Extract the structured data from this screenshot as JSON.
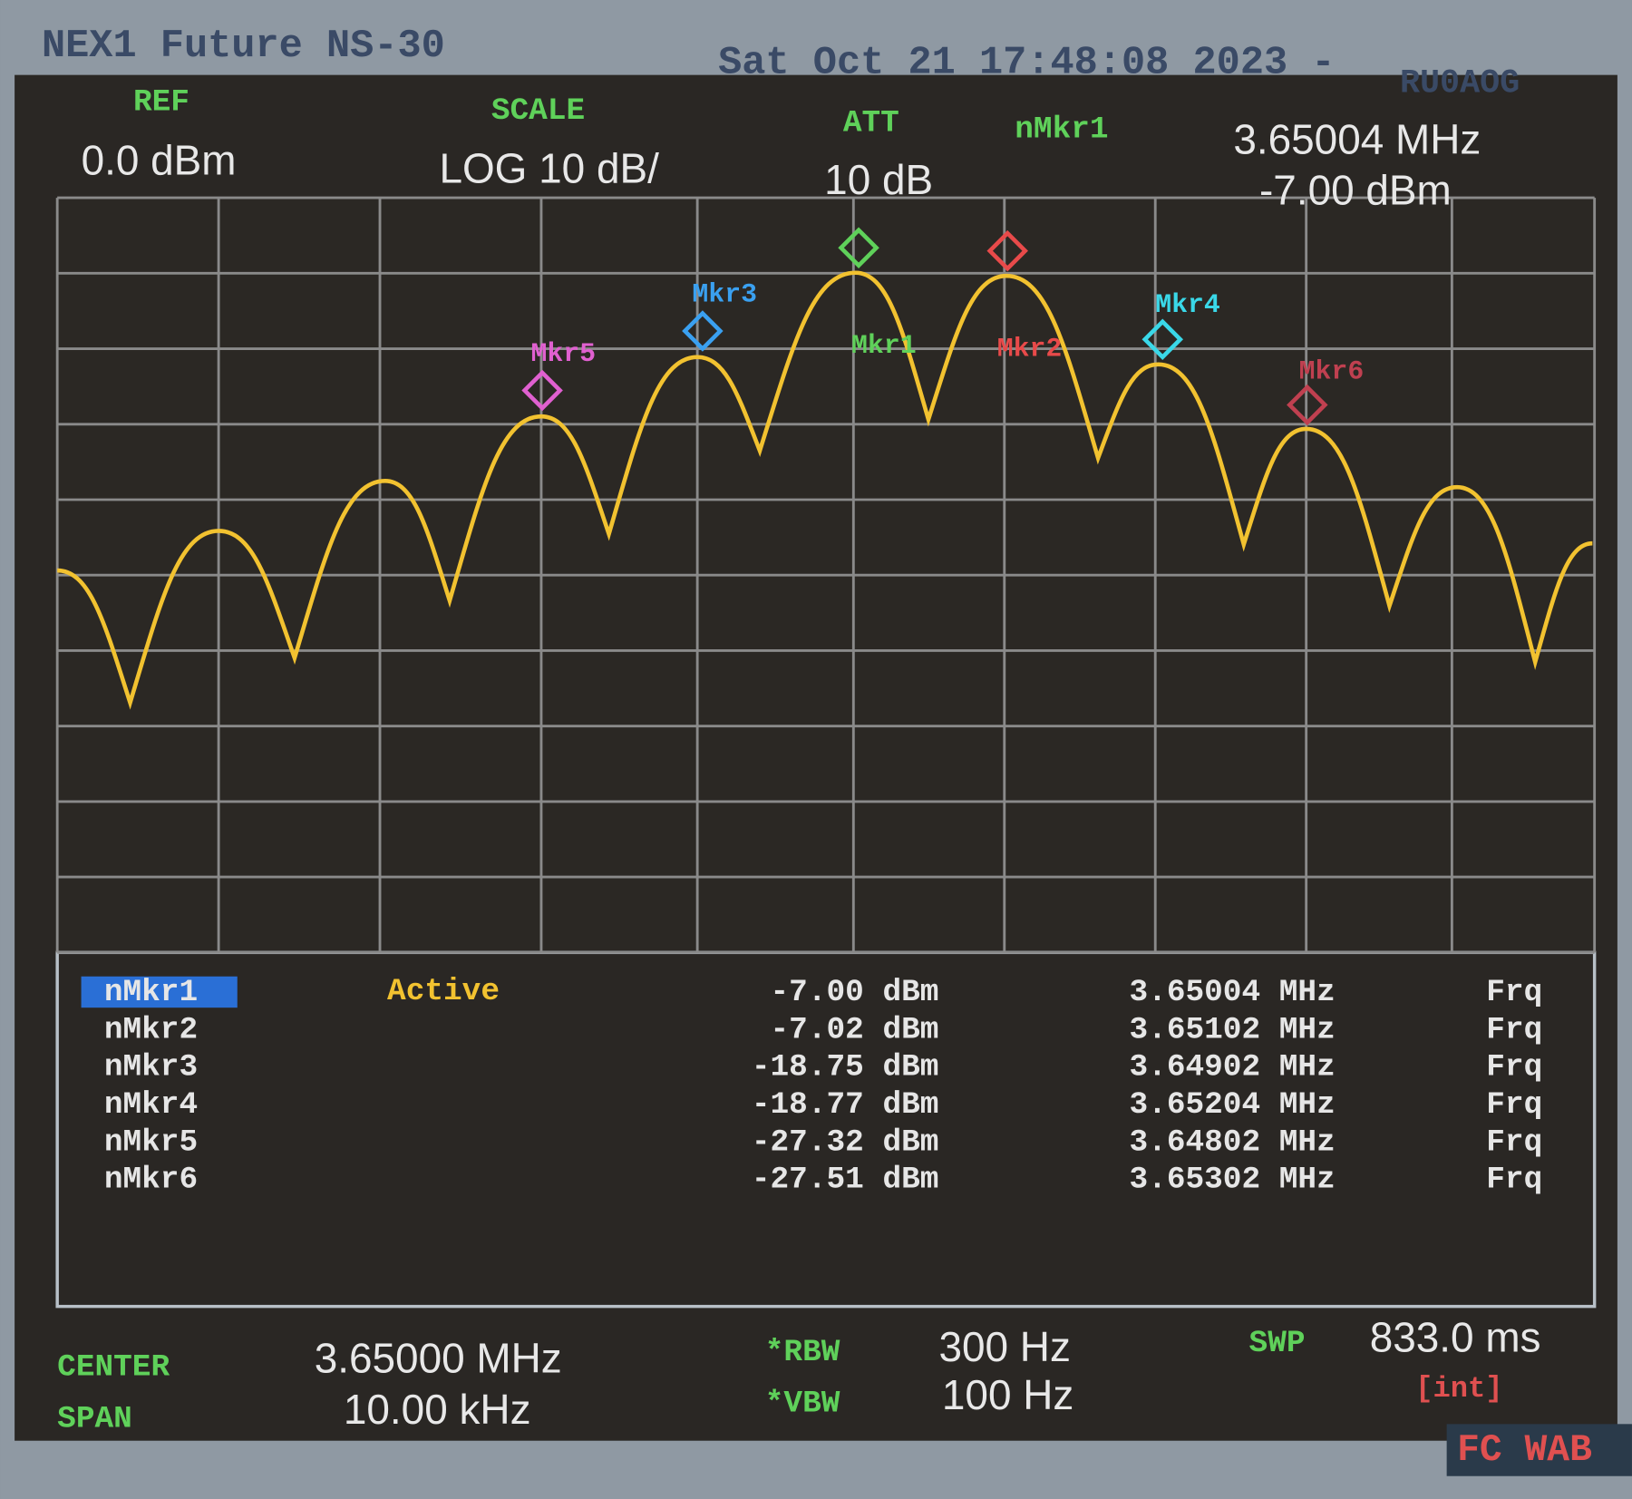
{
  "header": {
    "title": "NEX1 Future NS-30",
    "datetime": "Sat Oct 21 17:48:08 2023 -",
    "callsign": "RU0AOG"
  },
  "settings": {
    "ref_label": "REF",
    "ref_value": "0.0 dBm",
    "scale_label": "SCALE",
    "scale_value": "LOG 10 dB/",
    "att_label": "ATT",
    "att_value": "10 dB",
    "active_marker_label": "nMkr1",
    "active_marker_freq": "3.65004 MHz",
    "active_marker_level": "-7.00 dBm"
  },
  "trace_markers": [
    {
      "label": "Mkr1"
    },
    {
      "label": "Mkr2"
    },
    {
      "label": "Mkr3"
    },
    {
      "label": "Mkr4"
    },
    {
      "label": "Mkr5"
    },
    {
      "label": "Mkr6"
    }
  ],
  "marker_table": {
    "active_state": "Active",
    "rows": [
      {
        "name": "nMkr1",
        "level": "-7.00 dBm",
        "freq": "3.65004 MHz",
        "mode": "Frq"
      },
      {
        "name": "nMkr2",
        "level": "-7.02 dBm",
        "freq": "3.65102 MHz",
        "mode": "Frq"
      },
      {
        "name": "nMkr3",
        "level": "-18.75 dBm",
        "freq": "3.64902 MHz",
        "mode": "Frq"
      },
      {
        "name": "nMkr4",
        "level": "-18.77 dBm",
        "freq": "3.65204 MHz",
        "mode": "Frq"
      },
      {
        "name": "nMkr5",
        "level": "-27.32 dBm",
        "freq": "3.64802 MHz",
        "mode": "Frq"
      },
      {
        "name": "nMkr6",
        "level": "-27.51 dBm",
        "freq": "3.65302 MHz",
        "mode": "Frq"
      }
    ]
  },
  "footer": {
    "center_label": "CENTER",
    "center_value": "3.65000 MHz",
    "span_label": "SPAN",
    "span_value": "10.00 kHz",
    "rbw_label": "*RBW",
    "rbw_value": "300 Hz",
    "vbw_label": "*VBW",
    "vbw_value": "100 Hz",
    "swp_label": "SWP",
    "swp_value": "833.0 ms",
    "swp_mode": "[int]",
    "badge": "FC WAB"
  }
}
